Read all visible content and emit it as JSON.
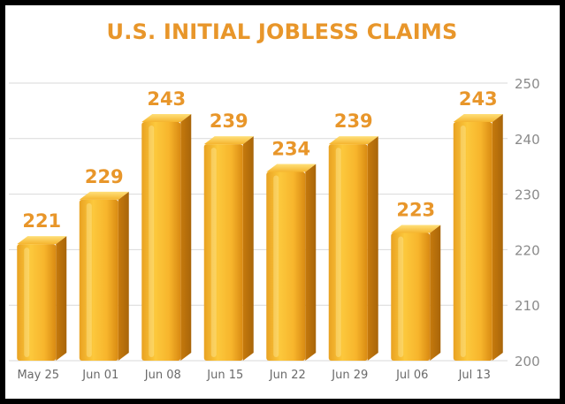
{
  "chart_data": {
    "type": "bar",
    "title": "U.S. INITIAL JOBLESS CLAIMS",
    "categories": [
      "May 25",
      "Jun 01",
      "Jun 08",
      "Jun 15",
      "Jun 22",
      "Jun 29",
      "Jul 06",
      "Jul 13"
    ],
    "values": [
      221,
      229,
      243,
      239,
      234,
      239,
      223,
      243
    ],
    "data_labels": [
      "221",
      "229",
      "243",
      "239",
      "234",
      "239",
      "223",
      "243"
    ],
    "ylim": [
      200,
      250
    ],
    "yticks": [
      200,
      210,
      220,
      230,
      240,
      250
    ],
    "y_axis_side": "right",
    "grid": true,
    "colors": {
      "title": "#e8962a",
      "label": "#e8962a",
      "bar_light": "#ffd54a",
      "bar_mid": "#f7b52c",
      "bar_dark": "#d98a12",
      "grid": "#d9d9d9"
    }
  }
}
